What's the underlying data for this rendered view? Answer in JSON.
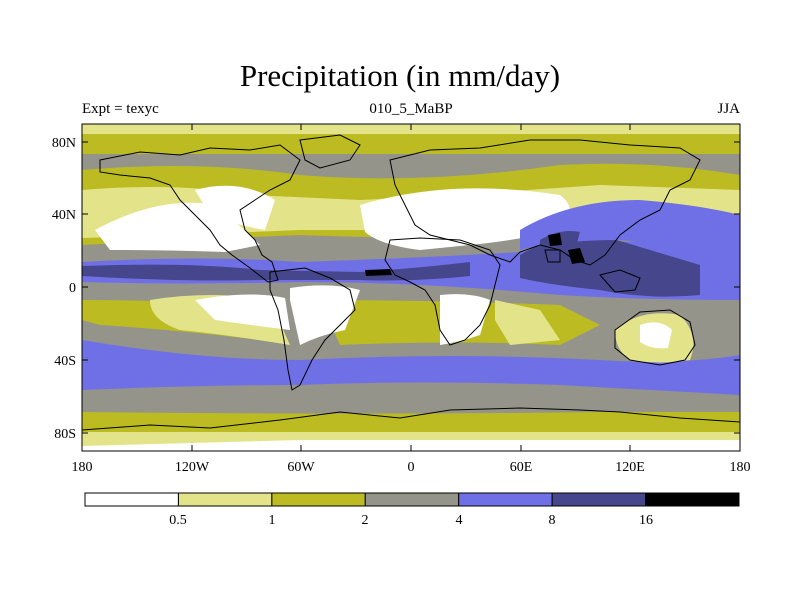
{
  "title": "Precipitation (in mm/day)",
  "subtitle_left": "Expt = texyc",
  "subtitle_center": "010_5_MaBP",
  "subtitle_right": "JJA",
  "axes": {
    "x_ticks": [
      "180",
      "120W",
      "60W",
      "0",
      "60E",
      "120E",
      "180"
    ],
    "y_ticks": [
      "80N",
      "40N",
      "0",
      "40S",
      "80S"
    ]
  },
  "colorbar": {
    "labels": [
      "0.5",
      "1",
      "2",
      "4",
      "8",
      "16"
    ],
    "colors": [
      "#ffffff",
      "#e3e38a",
      "#bcbc22",
      "#94948a",
      "#7070e6",
      "#46468c",
      "#000000"
    ]
  }
}
